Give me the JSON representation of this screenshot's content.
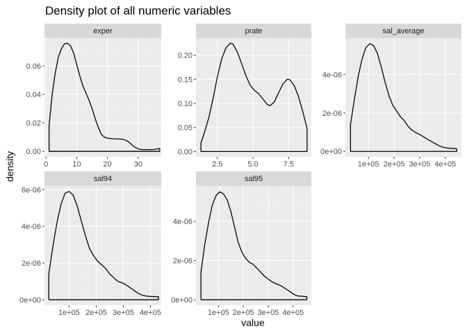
{
  "chart_data": {
    "type": "line",
    "title": "Density plot of all numeric variables",
    "xlabel": "value",
    "ylabel": "density",
    "grid": true,
    "panels": [
      {
        "name": "exper",
        "xlim": [
          -0.5,
          37.5
        ],
        "ylim": [
          -0.0038,
          0.0795
        ],
        "x_ticks": [
          0,
          10,
          20,
          30
        ],
        "x_tick_labels": [
          "0",
          "10",
          "20",
          "30"
        ],
        "y_ticks": [
          0,
          0.02,
          0.04,
          0.06
        ],
        "y_tick_labels": [
          "0.00",
          "0.02",
          "0.04",
          "0.06"
        ],
        "points": [
          [
            1,
            0
          ],
          [
            1,
            0.018
          ],
          [
            2,
            0.04
          ],
          [
            3,
            0.055
          ],
          [
            4,
            0.066
          ],
          [
            5,
            0.072
          ],
          [
            6,
            0.0755
          ],
          [
            7,
            0.076
          ],
          [
            8,
            0.074
          ],
          [
            9,
            0.069
          ],
          [
            10,
            0.061
          ],
          [
            11,
            0.053
          ],
          [
            12,
            0.046
          ],
          [
            13,
            0.041
          ],
          [
            14,
            0.036
          ],
          [
            15,
            0.03
          ],
          [
            16,
            0.023
          ],
          [
            17,
            0.017
          ],
          [
            18,
            0.012
          ],
          [
            19,
            0.01
          ],
          [
            20,
            0.0093
          ],
          [
            22,
            0.0088
          ],
          [
            24,
            0.0087
          ],
          [
            25,
            0.0085
          ],
          [
            26,
            0.0078
          ],
          [
            27,
            0.0065
          ],
          [
            28,
            0.0045
          ],
          [
            29,
            0.0028
          ],
          [
            30,
            0.0018
          ],
          [
            31,
            0.0013
          ],
          [
            33,
            0.0012
          ],
          [
            35,
            0.0013
          ],
          [
            36,
            0.0017
          ],
          [
            37,
            0.002
          ],
          [
            37,
            0
          ]
        ]
      },
      {
        "name": "prate",
        "xlim": [
          1.0,
          9.1
        ],
        "ylim": [
          -0.011,
          0.2355
        ],
        "x_ticks": [
          2.5,
          5.0,
          7.5
        ],
        "x_tick_labels": [
          "2.5",
          "5.0",
          "7.5"
        ],
        "y_ticks": [
          0,
          0.05,
          0.1,
          0.15,
          0.2
        ],
        "y_tick_labels": [
          "0.00",
          "0.05",
          "0.10",
          "0.15",
          "0.20"
        ],
        "points": [
          [
            1.35,
            0
          ],
          [
            1.35,
            0.018
          ],
          [
            1.6,
            0.04
          ],
          [
            1.9,
            0.07
          ],
          [
            2.2,
            0.11
          ],
          [
            2.5,
            0.155
          ],
          [
            2.8,
            0.192
          ],
          [
            3.1,
            0.215
          ],
          [
            3.4,
            0.225
          ],
          [
            3.6,
            0.223
          ],
          [
            3.9,
            0.207
          ],
          [
            4.2,
            0.183
          ],
          [
            4.5,
            0.158
          ],
          [
            4.8,
            0.138
          ],
          [
            5.1,
            0.127
          ],
          [
            5.4,
            0.12
          ],
          [
            5.7,
            0.109
          ],
          [
            6.0,
            0.098
          ],
          [
            6.2,
            0.095
          ],
          [
            6.5,
            0.103
          ],
          [
            6.8,
            0.122
          ],
          [
            7.1,
            0.14
          ],
          [
            7.4,
            0.15
          ],
          [
            7.6,
            0.149
          ],
          [
            7.9,
            0.137
          ],
          [
            8.2,
            0.114
          ],
          [
            8.5,
            0.083
          ],
          [
            8.8,
            0.048
          ],
          [
            8.8,
            0
          ]
        ]
      },
      {
        "name": "sal_average",
        "xlim": [
          10000,
          463000
        ],
        "ylim": [
          -2.8e-07,
          5.89e-06
        ],
        "x_ticks": [
          100000,
          200000,
          300000,
          400000
        ],
        "x_tick_labels": [
          "1e+05",
          "2e+05",
          "3e+05",
          "4e+05"
        ],
        "y_ticks": [
          0,
          2e-06,
          4e-06
        ],
        "y_tick_labels": [
          "0e+00",
          "2e-06",
          "4e-06"
        ],
        "points": [
          [
            30000,
            0
          ],
          [
            30000,
            1.4e-06
          ],
          [
            45000,
            2.7e-06
          ],
          [
            60000,
            3.9e-06
          ],
          [
            75000,
            4.8e-06
          ],
          [
            90000,
            5.4e-06
          ],
          [
            105000,
            5.6e-06
          ],
          [
            120000,
            5.5e-06
          ],
          [
            135000,
            5.1e-06
          ],
          [
            150000,
            4.4e-06
          ],
          [
            165000,
            3.6e-06
          ],
          [
            180000,
            2.9e-06
          ],
          [
            195000,
            2.4e-06
          ],
          [
            210000,
            2.1e-06
          ],
          [
            225000,
            1.8e-06
          ],
          [
            240000,
            1.6e-06
          ],
          [
            255000,
            1.3e-06
          ],
          [
            270000,
            1.1e-06
          ],
          [
            285000,
            9.8e-07
          ],
          [
            300000,
            8.8e-07
          ],
          [
            315000,
            7.6e-07
          ],
          [
            330000,
            6.4e-07
          ],
          [
            345000,
            5.2e-07
          ],
          [
            360000,
            4.1e-07
          ],
          [
            375000,
            3e-07
          ],
          [
            390000,
            2.2e-07
          ],
          [
            405000,
            1.8e-07
          ],
          [
            420000,
            1.6e-07
          ],
          [
            435000,
            1.5e-07
          ],
          [
            445000,
            1.3e-07
          ],
          [
            445000,
            0
          ]
        ]
      },
      {
        "name": "sal94",
        "xlim": [
          9000,
          440000
        ],
        "ylim": [
          -3e-07,
          6.2e-06
        ],
        "x_ticks": [
          100000,
          200000,
          300000,
          400000
        ],
        "x_tick_labels": [
          "1e+05",
          "2e+05",
          "3e+05",
          "4e+05"
        ],
        "y_ticks": [
          0,
          2e-06,
          4e-06,
          6e-06
        ],
        "y_tick_labels": [
          "0e+00",
          "2e-06",
          "4e-06",
          "6e-06"
        ],
        "points": [
          [
            25000,
            0
          ],
          [
            25000,
            1.4e-06
          ],
          [
            40000,
            2.9e-06
          ],
          [
            55000,
            4.2e-06
          ],
          [
            70000,
            5.2e-06
          ],
          [
            85000,
            5.8e-06
          ],
          [
            100000,
            5.9e-06
          ],
          [
            115000,
            5.7e-06
          ],
          [
            130000,
            5.1e-06
          ],
          [
            145000,
            4.3e-06
          ],
          [
            160000,
            3.5e-06
          ],
          [
            175000,
            2.8e-06
          ],
          [
            190000,
            2.4e-06
          ],
          [
            205000,
            2.1e-06
          ],
          [
            220000,
            1.9e-06
          ],
          [
            235000,
            1.7e-06
          ],
          [
            250000,
            1.4e-06
          ],
          [
            265000,
            1.2e-06
          ],
          [
            280000,
            1e-06
          ],
          [
            295000,
            9.3e-07
          ],
          [
            310000,
            8.1e-07
          ],
          [
            325000,
            6.6e-07
          ],
          [
            340000,
            5e-07
          ],
          [
            355000,
            3.5e-07
          ],
          [
            370000,
            2.5e-07
          ],
          [
            385000,
            2e-07
          ],
          [
            400000,
            1.8e-07
          ],
          [
            415000,
            1.7e-07
          ],
          [
            430000,
            1.6e-07
          ],
          [
            430000,
            0
          ]
        ]
      },
      {
        "name": "sal95",
        "xlim": [
          10000,
          473000
        ],
        "ylim": [
          -2.8e-07,
          5.8e-06
        ],
        "x_ticks": [
          100000,
          200000,
          300000,
          400000
        ],
        "x_tick_labels": [
          "1e+05",
          "2e+05",
          "3e+05",
          "4e+05"
        ],
        "y_ticks": [
          0,
          2e-06,
          4e-06
        ],
        "y_tick_labels": [
          "0e+00",
          "2e-06",
          "4e-06"
        ],
        "points": [
          [
            30000,
            0
          ],
          [
            30000,
            1.4e-06
          ],
          [
            45000,
            2.8e-06
          ],
          [
            60000,
            3.9e-06
          ],
          [
            75000,
            4.8e-06
          ],
          [
            90000,
            5.3e-06
          ],
          [
            105000,
            5.5e-06
          ],
          [
            120000,
            5.4e-06
          ],
          [
            135000,
            5.1e-06
          ],
          [
            150000,
            4.5e-06
          ],
          [
            165000,
            3.7e-06
          ],
          [
            180000,
            2.9e-06
          ],
          [
            195000,
            2.4e-06
          ],
          [
            210000,
            2.1e-06
          ],
          [
            225000,
            1.9e-06
          ],
          [
            240000,
            1.8e-06
          ],
          [
            255000,
            1.6e-06
          ],
          [
            270000,
            1.4e-06
          ],
          [
            285000,
            1.2e-06
          ],
          [
            300000,
            1.05e-06
          ],
          [
            315000,
            9.2e-07
          ],
          [
            330000,
            8.2e-07
          ],
          [
            345000,
            7.5e-07
          ],
          [
            360000,
            6.4e-07
          ],
          [
            375000,
            5.2e-07
          ],
          [
            390000,
            3.9e-07
          ],
          [
            405000,
            2.6e-07
          ],
          [
            420000,
            1.9e-07
          ],
          [
            435000,
            1.8e-07
          ],
          [
            450000,
            1.6e-07
          ],
          [
            455000,
            1.5e-07
          ],
          [
            455000,
            0
          ]
        ]
      }
    ]
  },
  "colors": {
    "panel_background": "#ebebeb",
    "strip_background": "#d9d9d9",
    "grid_major": "#ffffff",
    "grid_minor": "#f2f2f2",
    "line": "#000000"
  }
}
